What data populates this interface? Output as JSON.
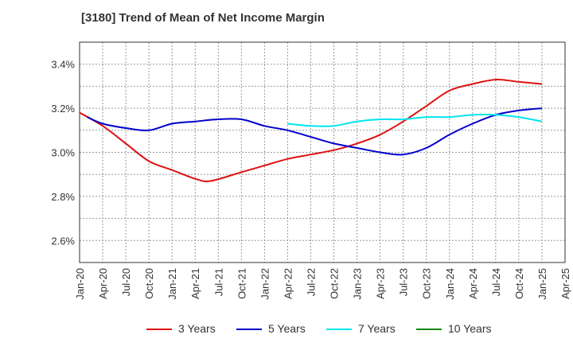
{
  "title": "[3180]  Trend of Mean of Net Income Margin",
  "chart_data": {
    "type": "line",
    "title": "[3180]  Trend of Mean of Net Income Margin",
    "xlabel": "",
    "ylabel": "",
    "x_ticks": [
      "Jan-20",
      "Apr-20",
      "Jul-20",
      "Oct-20",
      "Jan-21",
      "Apr-21",
      "Jul-21",
      "Oct-21",
      "Jan-22",
      "Apr-22",
      "Jul-22",
      "Oct-22",
      "Jan-23",
      "Apr-23",
      "Jul-23",
      "Oct-23",
      "Jan-24",
      "Apr-24",
      "Jul-24",
      "Oct-24",
      "Jan-25",
      "Apr-25"
    ],
    "y_ticks": [
      "2.6%",
      "2.8%",
      "3.0%",
      "3.2%",
      "3.4%"
    ],
    "y_tick_values": [
      2.6,
      2.8,
      3.0,
      3.2,
      3.4
    ],
    "ylim": [
      2.5,
      3.5
    ],
    "grid": true,
    "legend_position": "bottom",
    "series": [
      {
        "name": "3 Years",
        "color": "#dd1111",
        "x": [
          "Jan-20",
          "Apr-20",
          "Jul-20",
          "Oct-20",
          "Jan-21",
          "Apr-21",
          "Jun-21",
          "Oct-21",
          "Jan-22",
          "Apr-22",
          "Jul-22",
          "Oct-22",
          "Jan-23",
          "Apr-23",
          "Jul-23",
          "Oct-23",
          "Jan-24",
          "Apr-24",
          "Jul-24",
          "Oct-24",
          "Jan-25"
        ],
        "values": [
          3.18,
          3.12,
          3.04,
          2.96,
          2.92,
          2.88,
          2.87,
          2.91,
          2.94,
          2.97,
          2.99,
          3.01,
          3.04,
          3.08,
          3.14,
          3.21,
          3.28,
          3.31,
          3.33,
          3.32,
          3.31
        ]
      },
      {
        "name": "5 Years",
        "color": "#0000cc",
        "x": [
          "Feb-20",
          "Apr-20",
          "Jul-20",
          "Oct-20",
          "Jan-21",
          "Apr-21",
          "Jul-21",
          "Oct-21",
          "Jan-22",
          "Apr-22",
          "Jul-22",
          "Oct-22",
          "Jan-23",
          "Apr-23",
          "Jul-23",
          "Oct-23",
          "Jan-24",
          "Apr-24",
          "Jul-24",
          "Oct-24",
          "Jan-25"
        ],
        "values": [
          3.16,
          3.13,
          3.11,
          3.1,
          3.13,
          3.14,
          3.15,
          3.15,
          3.12,
          3.1,
          3.07,
          3.04,
          3.02,
          3.0,
          2.99,
          3.02,
          3.08,
          3.13,
          3.17,
          3.19,
          3.2
        ]
      },
      {
        "name": "7 Years",
        "color": "#00e5ee",
        "x": [
          "Apr-22",
          "Jul-22",
          "Oct-22",
          "Jan-23",
          "Apr-23",
          "Jul-23",
          "Oct-23",
          "Jan-24",
          "Apr-24",
          "Jul-24",
          "Oct-24",
          "Jan-25"
        ],
        "values": [
          3.13,
          3.12,
          3.12,
          3.14,
          3.15,
          3.15,
          3.16,
          3.16,
          3.17,
          3.17,
          3.16,
          3.14
        ]
      },
      {
        "name": "10 Years",
        "color": "#118811",
        "x": [],
        "values": []
      }
    ]
  }
}
